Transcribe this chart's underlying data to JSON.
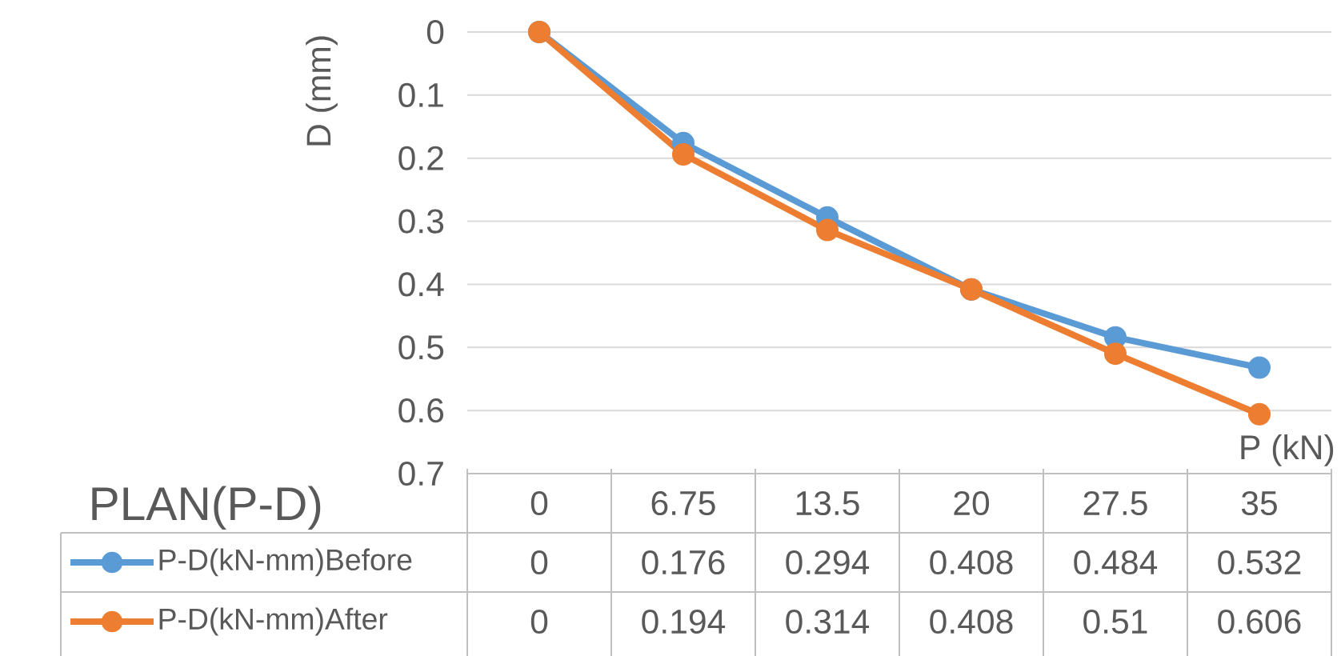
{
  "chart_data": {
    "type": "line",
    "title": "PLAN(P-D)",
    "xlabel": "P (kN)",
    "ylabel": "D (mm)",
    "categories": [
      "0",
      "6.75",
      "13.5",
      "20",
      "27.5",
      "35"
    ],
    "series": [
      {
        "name": "P-D(kN-mm)Before",
        "color": "#5b9bd5",
        "values": [
          0,
          0.176,
          0.294,
          0.408,
          0.484,
          0.532
        ]
      },
      {
        "name": "P-D(kN-mm)After",
        "color": "#ed7d31",
        "values": [
          0,
          0.194,
          0.314,
          0.408,
          0.51,
          0.606
        ]
      }
    ],
    "ylim": [
      0.7,
      0
    ],
    "yticks": [
      0,
      0.1,
      0.2,
      0.3,
      0.4,
      0.5,
      0.6,
      0.7
    ],
    "grid": "y",
    "legend": "bottom",
    "marker": "circle",
    "line_style": "solid",
    "data_labels": true
  }
}
